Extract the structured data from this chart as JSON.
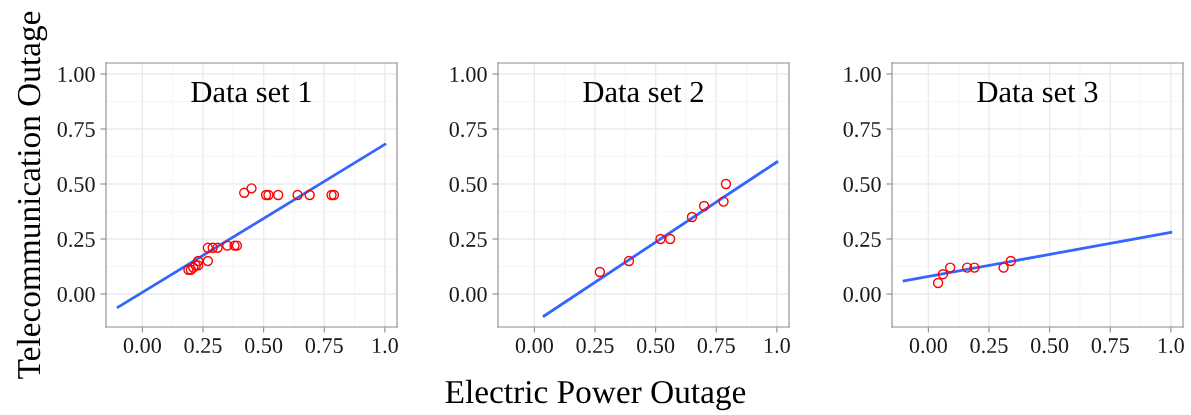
{
  "chart_data": [
    {
      "type": "scatter",
      "title": "Data set 1",
      "ylabel": "Telecommunication Outage",
      "xlim": [
        -0.15,
        1.05
      ],
      "ylim": [
        -0.15,
        1.05
      ],
      "xticks": [
        {
          "value": 0,
          "label": "0.00"
        },
        {
          "value": 0.25,
          "label": "0.25"
        },
        {
          "value": 0.5,
          "label": "0.50"
        },
        {
          "value": 0.75,
          "label": "0.75"
        },
        {
          "value": 1,
          "label": "1.0"
        }
      ],
      "yticks": [
        {
          "value": 0,
          "label": "0.00"
        },
        {
          "value": 0.25,
          "label": "0.25"
        },
        {
          "value": 0.5,
          "label": "0.50"
        },
        {
          "value": 0.75,
          "label": "0.75"
        },
        {
          "value": 1,
          "label": "1.00"
        }
      ],
      "grid": true,
      "series": [
        {
          "marker": "circle",
          "color": "#ff0000",
          "x": [
            0.19,
            0.2,
            0.21,
            0.22,
            0.23,
            0.23,
            0.27,
            0.27,
            0.29,
            0.31,
            0.35,
            0.38,
            0.39,
            0.42,
            0.45,
            0.51,
            0.52,
            0.56,
            0.64,
            0.69,
            0.78,
            0.79
          ],
          "values": [
            0.11,
            0.11,
            0.12,
            0.13,
            0.15,
            0.13,
            0.15,
            0.21,
            0.21,
            0.21,
            0.22,
            0.22,
            0.22,
            0.46,
            0.48,
            0.45,
            0.45,
            0.45,
            0.45,
            0.45,
            0.45,
            0.45
          ]
        },
        {
          "type": "line",
          "color": "#3366ff",
          "x": [
            -0.1,
            1.0
          ],
          "values": [
            -0.06,
            0.68
          ]
        }
      ]
    },
    {
      "type": "scatter",
      "title": "Data set 2",
      "xlabel": "Electric Power Outage",
      "xlim": [
        -0.15,
        1.05
      ],
      "ylim": [
        -0.15,
        1.05
      ],
      "xticks": [
        {
          "value": 0,
          "label": "0.00"
        },
        {
          "value": 0.25,
          "label": "0.25"
        },
        {
          "value": 0.5,
          "label": "0.50"
        },
        {
          "value": 0.75,
          "label": "0.75"
        },
        {
          "value": 1,
          "label": "1.0"
        }
      ],
      "yticks": [
        {
          "value": 0,
          "label": "0.00"
        },
        {
          "value": 0.25,
          "label": "0.25"
        },
        {
          "value": 0.5,
          "label": "0.50"
        },
        {
          "value": 0.75,
          "label": "0.75"
        },
        {
          "value": 1,
          "label": "1.00"
        }
      ],
      "grid": true,
      "series": [
        {
          "marker": "circle",
          "color": "#ff0000",
          "x": [
            0.27,
            0.39,
            0.52,
            0.56,
            0.65,
            0.7,
            0.78,
            0.79
          ],
          "values": [
            0.1,
            0.15,
            0.25,
            0.25,
            0.35,
            0.4,
            0.42,
            0.5
          ]
        },
        {
          "type": "line",
          "color": "#3366ff",
          "x": [
            0.04,
            1.0
          ],
          "values": [
            -0.1,
            0.6
          ]
        }
      ]
    },
    {
      "type": "scatter",
      "title": "Data set 3",
      "xlim": [
        -0.15,
        1.05
      ],
      "ylim": [
        -0.15,
        1.05
      ],
      "xticks": [
        {
          "value": 0,
          "label": "0.00"
        },
        {
          "value": 0.25,
          "label": "0.25"
        },
        {
          "value": 0.5,
          "label": "0.50"
        },
        {
          "value": 0.75,
          "label": "0.75"
        },
        {
          "value": 1,
          "label": "1.0"
        }
      ],
      "yticks": [
        {
          "value": 0,
          "label": "0.00"
        },
        {
          "value": 0.25,
          "label": "0.25"
        },
        {
          "value": 0.5,
          "label": "0.50"
        },
        {
          "value": 0.75,
          "label": "0.75"
        },
        {
          "value": 1,
          "label": "1.00"
        }
      ],
      "grid": true,
      "series": [
        {
          "marker": "circle",
          "color": "#ff0000",
          "x": [
            0.04,
            0.06,
            0.09,
            0.16,
            0.19,
            0.31,
            0.34
          ],
          "values": [
            0.05,
            0.09,
            0.12,
            0.12,
            0.12,
            0.12,
            0.15
          ]
        },
        {
          "type": "line",
          "color": "#3366ff",
          "x": [
            -0.1,
            1.0
          ],
          "values": [
            0.06,
            0.28
          ]
        }
      ]
    }
  ]
}
